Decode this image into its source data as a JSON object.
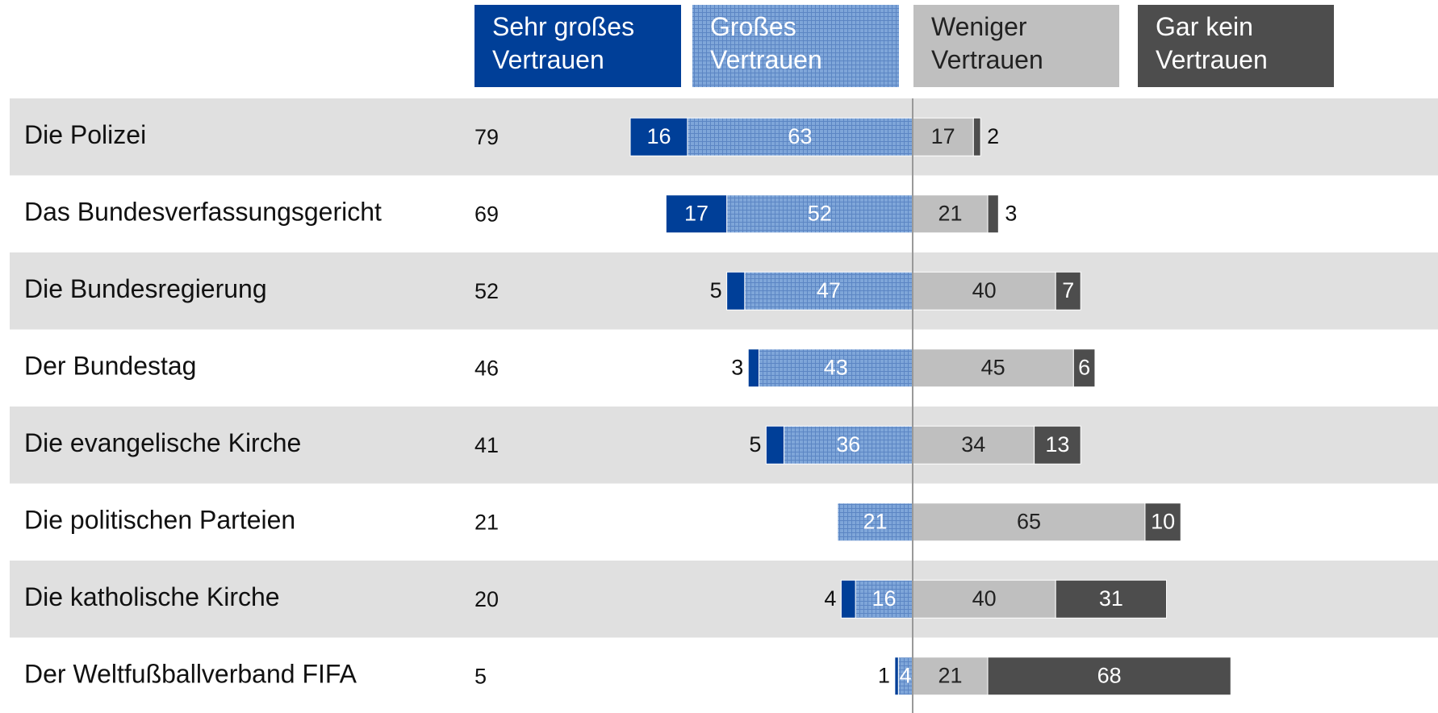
{
  "chart_data": {
    "type": "diverging_bar",
    "categories": [
      "Die Polizei",
      "Das Bundesverfassungsgericht",
      "Die Bundesregierung",
      "Der Bundestag",
      "Die evangelische Kirche",
      "Die politischen Parteien",
      "Die katholische Kirche",
      "Der Weltfußballverband FIFA"
    ],
    "totals": [
      79,
      69,
      52,
      46,
      41,
      21,
      20,
      5
    ],
    "series": [
      {
        "name": "Sehr großes Vertrauen",
        "color": "#003f98",
        "values": [
          16,
          17,
          5,
          3,
          5,
          null,
          4,
          1
        ]
      },
      {
        "name": "Großes Vertrauen",
        "color": "#7fa6d9",
        "values": [
          63,
          52,
          47,
          43,
          36,
          21,
          16,
          4
        ]
      },
      {
        "name": "Weniger Vertrauen",
        "color": "#bfbfbf",
        "values": [
          17,
          21,
          40,
          45,
          34,
          65,
          40,
          21
        ]
      },
      {
        "name": "Gar kein Vertrauen",
        "color": "#4d4d4d",
        "values": [
          2,
          3,
          7,
          6,
          13,
          10,
          31,
          68
        ]
      }
    ]
  }
}
